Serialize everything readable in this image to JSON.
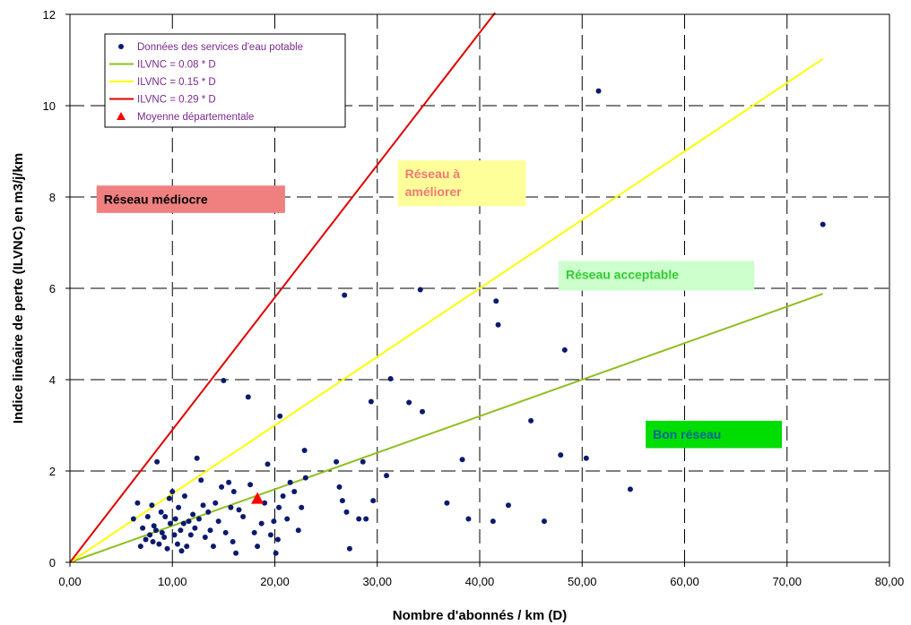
{
  "chart_data": {
    "type": "scatter",
    "xlabel": "Nombre d'abonnés / km (D)",
    "ylabel": "Indice linéaire de perte (ILVNC) en m3/j/km",
    "xlim": [
      0,
      80
    ],
    "ylim": [
      0,
      12
    ],
    "x_ticks": [
      "0,00",
      "10,00",
      "20,00",
      "30,00",
      "40,00",
      "50,00",
      "60,00",
      "70,00",
      "80,00"
    ],
    "y_ticks": [
      "0",
      "2",
      "4",
      "6",
      "8",
      "10",
      "12"
    ],
    "grid": "dashed",
    "legend_position": "top-left",
    "series": [
      {
        "name": "Données des services d'eau potable",
        "kind": "points",
        "color": "#0a1a6e",
        "points": [
          [
            6.2,
            0.95
          ],
          [
            6.6,
            1.3
          ],
          [
            6.9,
            0.35
          ],
          [
            7.1,
            0.75
          ],
          [
            7.4,
            0.5
          ],
          [
            7.6,
            1.0
          ],
          [
            7.8,
            0.6
          ],
          [
            8.0,
            1.25
          ],
          [
            8.1,
            0.45
          ],
          [
            8.2,
            0.8
          ],
          [
            8.4,
            0.7
          ],
          [
            8.5,
            2.2
          ],
          [
            8.7,
            0.4
          ],
          [
            8.9,
            1.1
          ],
          [
            9.0,
            0.65
          ],
          [
            9.2,
            0.55
          ],
          [
            9.3,
            1.0
          ],
          [
            9.5,
            0.3
          ],
          [
            9.7,
            1.4
          ],
          [
            9.8,
            0.85
          ],
          [
            10.0,
            1.55
          ],
          [
            10.2,
            0.6
          ],
          [
            10.3,
            0.95
          ],
          [
            10.5,
            0.4
          ],
          [
            10.6,
            1.2
          ],
          [
            10.8,
            0.7
          ],
          [
            10.9,
            0.25
          ],
          [
            11.1,
            0.85
          ],
          [
            11.2,
            1.45
          ],
          [
            11.4,
            0.35
          ],
          [
            11.6,
            0.9
          ],
          [
            11.8,
            0.6
          ],
          [
            12.0,
            1.05
          ],
          [
            12.2,
            0.75
          ],
          [
            12.4,
            2.28
          ],
          [
            12.6,
            0.95
          ],
          [
            12.8,
            1.8
          ],
          [
            13.0,
            1.25
          ],
          [
            13.2,
            0.55
          ],
          [
            13.5,
            1.1
          ],
          [
            13.7,
            0.7
          ],
          [
            14.0,
            0.35
          ],
          [
            14.2,
            1.3
          ],
          [
            14.5,
            0.9
          ],
          [
            14.8,
            1.65
          ],
          [
            15.0,
            3.98
          ],
          [
            15.2,
            0.65
          ],
          [
            15.5,
            1.75
          ],
          [
            15.7,
            1.2
          ],
          [
            15.9,
            0.45
          ],
          [
            16.0,
            1.55
          ],
          [
            16.2,
            0.2
          ],
          [
            16.5,
            1.15
          ],
          [
            16.9,
            1.0
          ],
          [
            17.4,
            3.62
          ],
          [
            17.6,
            1.7
          ],
          [
            18.0,
            0.65
          ],
          [
            18.3,
            0.35
          ],
          [
            18.7,
            0.85
          ],
          [
            19.0,
            1.3
          ],
          [
            19.3,
            2.15
          ],
          [
            19.6,
            0.6
          ],
          [
            19.9,
            0.9
          ],
          [
            20.1,
            0.2
          ],
          [
            20.3,
            0.5
          ],
          [
            20.4,
            1.2
          ],
          [
            20.5,
            3.2
          ],
          [
            20.8,
            1.45
          ],
          [
            21.2,
            0.95
          ],
          [
            21.5,
            1.75
          ],
          [
            21.9,
            1.55
          ],
          [
            22.3,
            0.7
          ],
          [
            22.6,
            1.2
          ],
          [
            22.9,
            2.45
          ],
          [
            23.0,
            1.85
          ],
          [
            26.0,
            2.2
          ],
          [
            26.3,
            1.65
          ],
          [
            26.6,
            1.35
          ],
          [
            26.8,
            5.85
          ],
          [
            27.0,
            1.1
          ],
          [
            27.3,
            0.3
          ],
          [
            28.2,
            0.95
          ],
          [
            28.6,
            2.2
          ],
          [
            28.9,
            0.95
          ],
          [
            29.4,
            3.52
          ],
          [
            29.6,
            1.35
          ],
          [
            30.9,
            1.9
          ],
          [
            31.3,
            4.02
          ],
          [
            33.1,
            3.5
          ],
          [
            34.2,
            5.97
          ],
          [
            34.4,
            3.3
          ],
          [
            36.8,
            1.3
          ],
          [
            38.3,
            2.25
          ],
          [
            38.9,
            0.95
          ],
          [
            41.3,
            0.9
          ],
          [
            41.6,
            5.72
          ],
          [
            41.8,
            5.2
          ],
          [
            42.8,
            1.25
          ],
          [
            45.0,
            3.1
          ],
          [
            46.3,
            0.9
          ],
          [
            47.9,
            2.35
          ],
          [
            48.3,
            4.65
          ],
          [
            50.4,
            2.28
          ],
          [
            51.6,
            10.32
          ],
          [
            54.7,
            1.6
          ],
          [
            73.5,
            7.4
          ]
        ]
      },
      {
        "name": "ILVNC = 0.08 * D",
        "kind": "line",
        "slope": 0.08,
        "x_end": 73.5,
        "color": "#8fbf20"
      },
      {
        "name": "ILVNC = 0.15 * D",
        "kind": "line",
        "slope": 0.15,
        "x_end": 73.5,
        "color": "#ffff00"
      },
      {
        "name": "ILVNC = 0.29 * D",
        "kind": "line",
        "slope": 0.29,
        "x_end": 41.5,
        "color": "#e00000"
      },
      {
        "name": "Moyenne départementale",
        "kind": "marker",
        "x": 18.3,
        "y": 1.4,
        "color": "#ff0000"
      }
    ],
    "zones": [
      {
        "label": "Réseau  médiocre",
        "x0": 2.6,
        "x1": 21.0,
        "y0": 7.65,
        "y1": 8.25,
        "fill": "#f08080",
        "text_color": "#000000"
      },
      {
        "label": "Réseau  à\naméliorer",
        "x0": 32.0,
        "x1": 44.5,
        "y0": 7.8,
        "y1": 8.8,
        "fill": "#ffff99",
        "text_color": "#f07878"
      },
      {
        "label": "Réseau  acceptable",
        "x0": 47.7,
        "x1": 66.8,
        "y0": 5.95,
        "y1": 6.6,
        "fill": "#ccffcc",
        "text_color": "#33cc33"
      },
      {
        "label": "Bon réseau",
        "x0": 56.2,
        "x1": 69.5,
        "y0": 2.5,
        "y1": 3.1,
        "fill": "#00dd00",
        "text_color": "#006699"
      }
    ]
  }
}
